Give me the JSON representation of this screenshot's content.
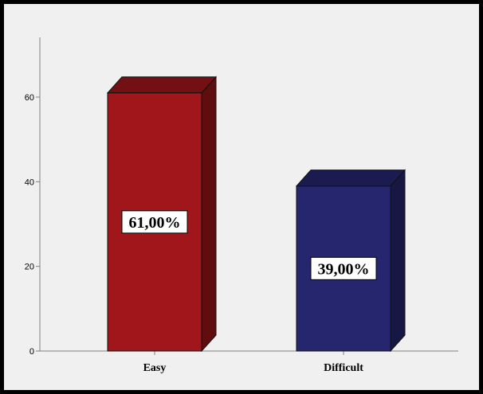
{
  "chart_data": {
    "type": "bar",
    "categories": [
      "Easy",
      "Difficult"
    ],
    "values": [
      61,
      39
    ],
    "data_labels": [
      "61,00%",
      "39,00%"
    ],
    "colors": [
      "#a0161a",
      "#25266e"
    ],
    "yticks": [
      0,
      20,
      40,
      60
    ],
    "ylim": [
      0,
      73
    ],
    "grid": false,
    "style": "3d-bar"
  }
}
